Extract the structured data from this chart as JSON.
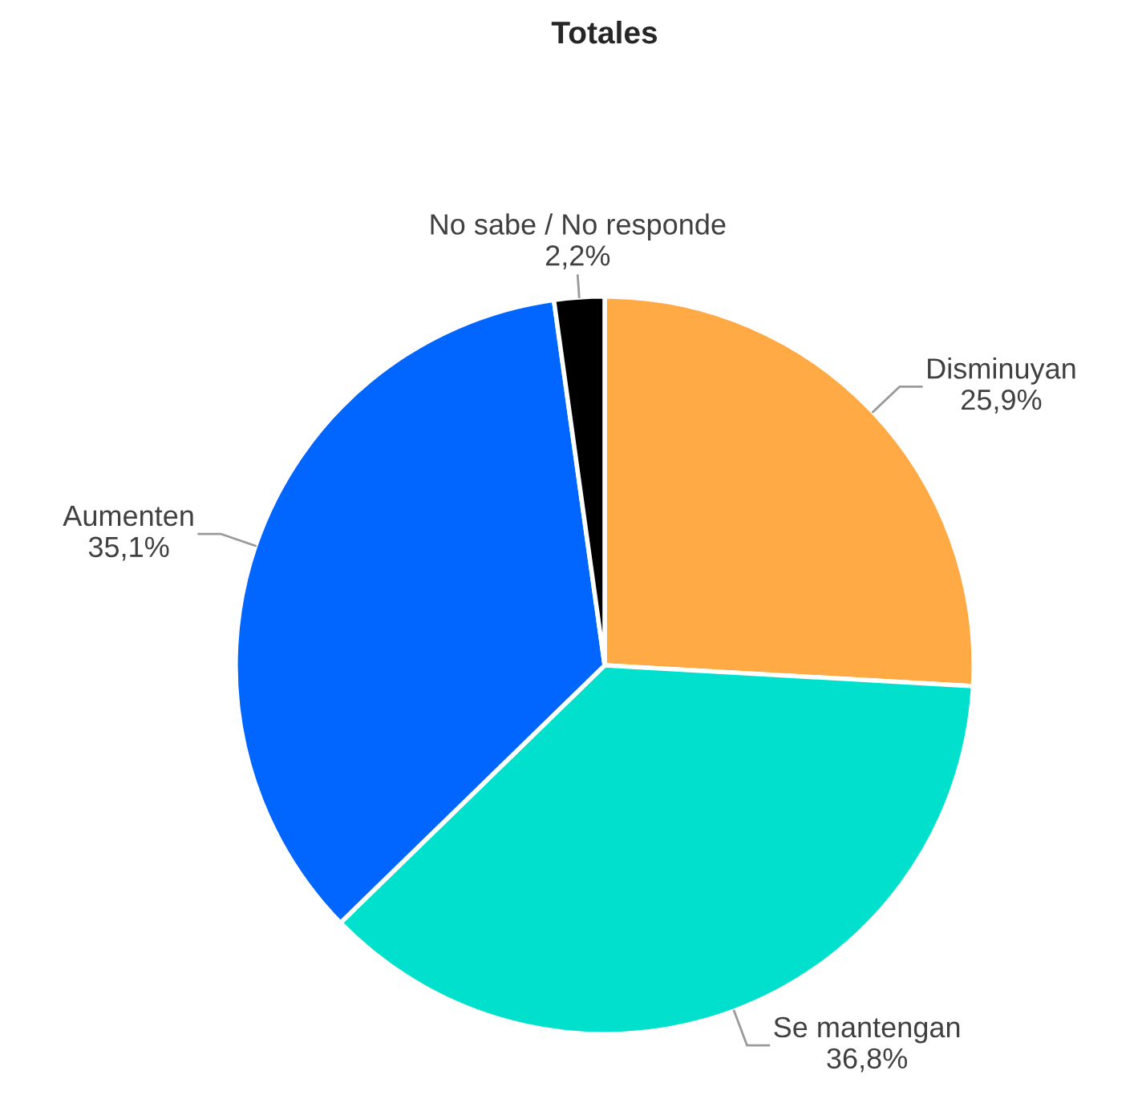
{
  "chart_data": {
    "type": "pie",
    "title": "Totales",
    "categories": [
      "Disminuyan",
      "Se mantengan",
      "Aumenten",
      "No sabe / No responde"
    ],
    "values": [
      25.9,
      36.8,
      35.1,
      2.2
    ],
    "value_labels": [
      "25,9%",
      "36,8%",
      "35,1%",
      "2,2%"
    ],
    "colors": [
      "#ffaa44",
      "#00e0cc",
      "#0066ff",
      "#000000"
    ]
  }
}
